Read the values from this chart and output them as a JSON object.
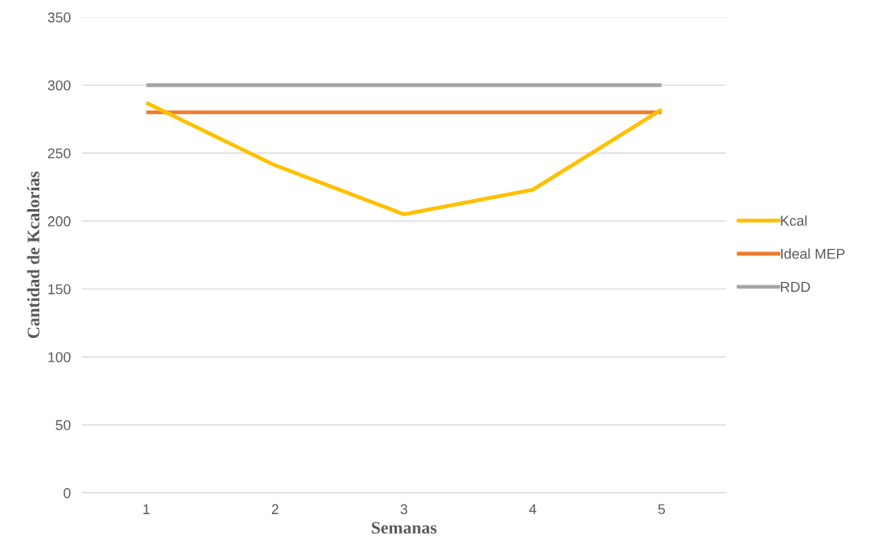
{
  "chart_data": {
    "type": "line",
    "xlabel": "Semanas",
    "ylabel": "Cantidad de Kcalorías",
    "categories": [
      "1",
      "2",
      "3",
      "4",
      "5"
    ],
    "series": [
      {
        "name": "Kcal",
        "color": "#ffc000",
        "values": [
          287,
          241,
          205,
          223,
          282
        ]
      },
      {
        "name": "Ideal MEP",
        "color": "#ed7d31",
        "values": [
          280,
          280,
          280,
          280,
          280
        ]
      },
      {
        "name": "RDD",
        "color": "#a5a5a5",
        "values": [
          300,
          300,
          300,
          300,
          300
        ]
      }
    ],
    "ylim": [
      0,
      350
    ],
    "yticks": [
      0,
      50,
      100,
      150,
      200,
      250,
      300,
      350
    ],
    "grid": "y",
    "legend": "right",
    "marker": "none",
    "line_style": "solid"
  }
}
